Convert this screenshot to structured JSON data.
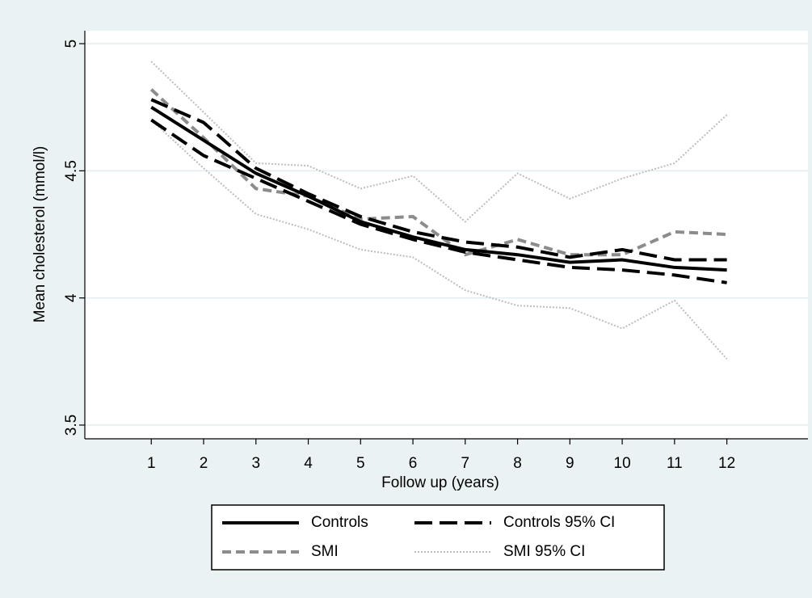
{
  "chart_data": {
    "type": "line",
    "x_label": "Follow up (years)",
    "y_label": "Mean cholesterol (mmol/l)",
    "x": [
      1,
      2,
      3,
      4,
      5,
      6,
      7,
      8,
      9,
      10,
      11,
      12
    ],
    "xlim": [
      -0.27,
      13.55
    ],
    "xticks": [
      1,
      2,
      3,
      4,
      5,
      6,
      7,
      8,
      9,
      10,
      11,
      12
    ],
    "ylim": [
      3.446,
      5.051
    ],
    "yticks": [
      3.5,
      4,
      4.5,
      5
    ],
    "grid": true,
    "series": [
      {
        "name": "Controls",
        "color": "#000000",
        "dash": "solid",
        "values": [
          4.75,
          4.62,
          4.49,
          4.4,
          4.3,
          4.24,
          4.19,
          4.17,
          4.14,
          4.15,
          4.12,
          4.11
        ]
      },
      {
        "name": "Controls 95% CI",
        "color": "#000000",
        "dash": "longdash",
        "upper": [
          4.78,
          4.69,
          4.51,
          4.41,
          4.32,
          4.26,
          4.22,
          4.2,
          4.16,
          4.19,
          4.15,
          4.15
        ],
        "lower": [
          4.7,
          4.56,
          4.47,
          4.38,
          4.29,
          4.23,
          4.18,
          4.15,
          4.12,
          4.11,
          4.09,
          4.06
        ]
      },
      {
        "name": "SMI",
        "color": "#8c8c8c",
        "dash": "dash",
        "values": [
          4.82,
          4.63,
          4.43,
          4.4,
          4.31,
          4.32,
          4.17,
          4.23,
          4.17,
          4.17,
          4.26,
          4.25
        ]
      },
      {
        "name": "SMI 95% CI",
        "color": "#bdbdbd",
        "dash": "dot",
        "upper": [
          4.93,
          4.73,
          4.53,
          4.52,
          4.43,
          4.48,
          4.3,
          4.49,
          4.39,
          4.47,
          4.53,
          4.72
        ],
        "lower": [
          4.7,
          4.51,
          4.33,
          4.27,
          4.19,
          4.16,
          4.03,
          3.97,
          3.96,
          3.88,
          3.99,
          3.76
        ]
      }
    ]
  }
}
